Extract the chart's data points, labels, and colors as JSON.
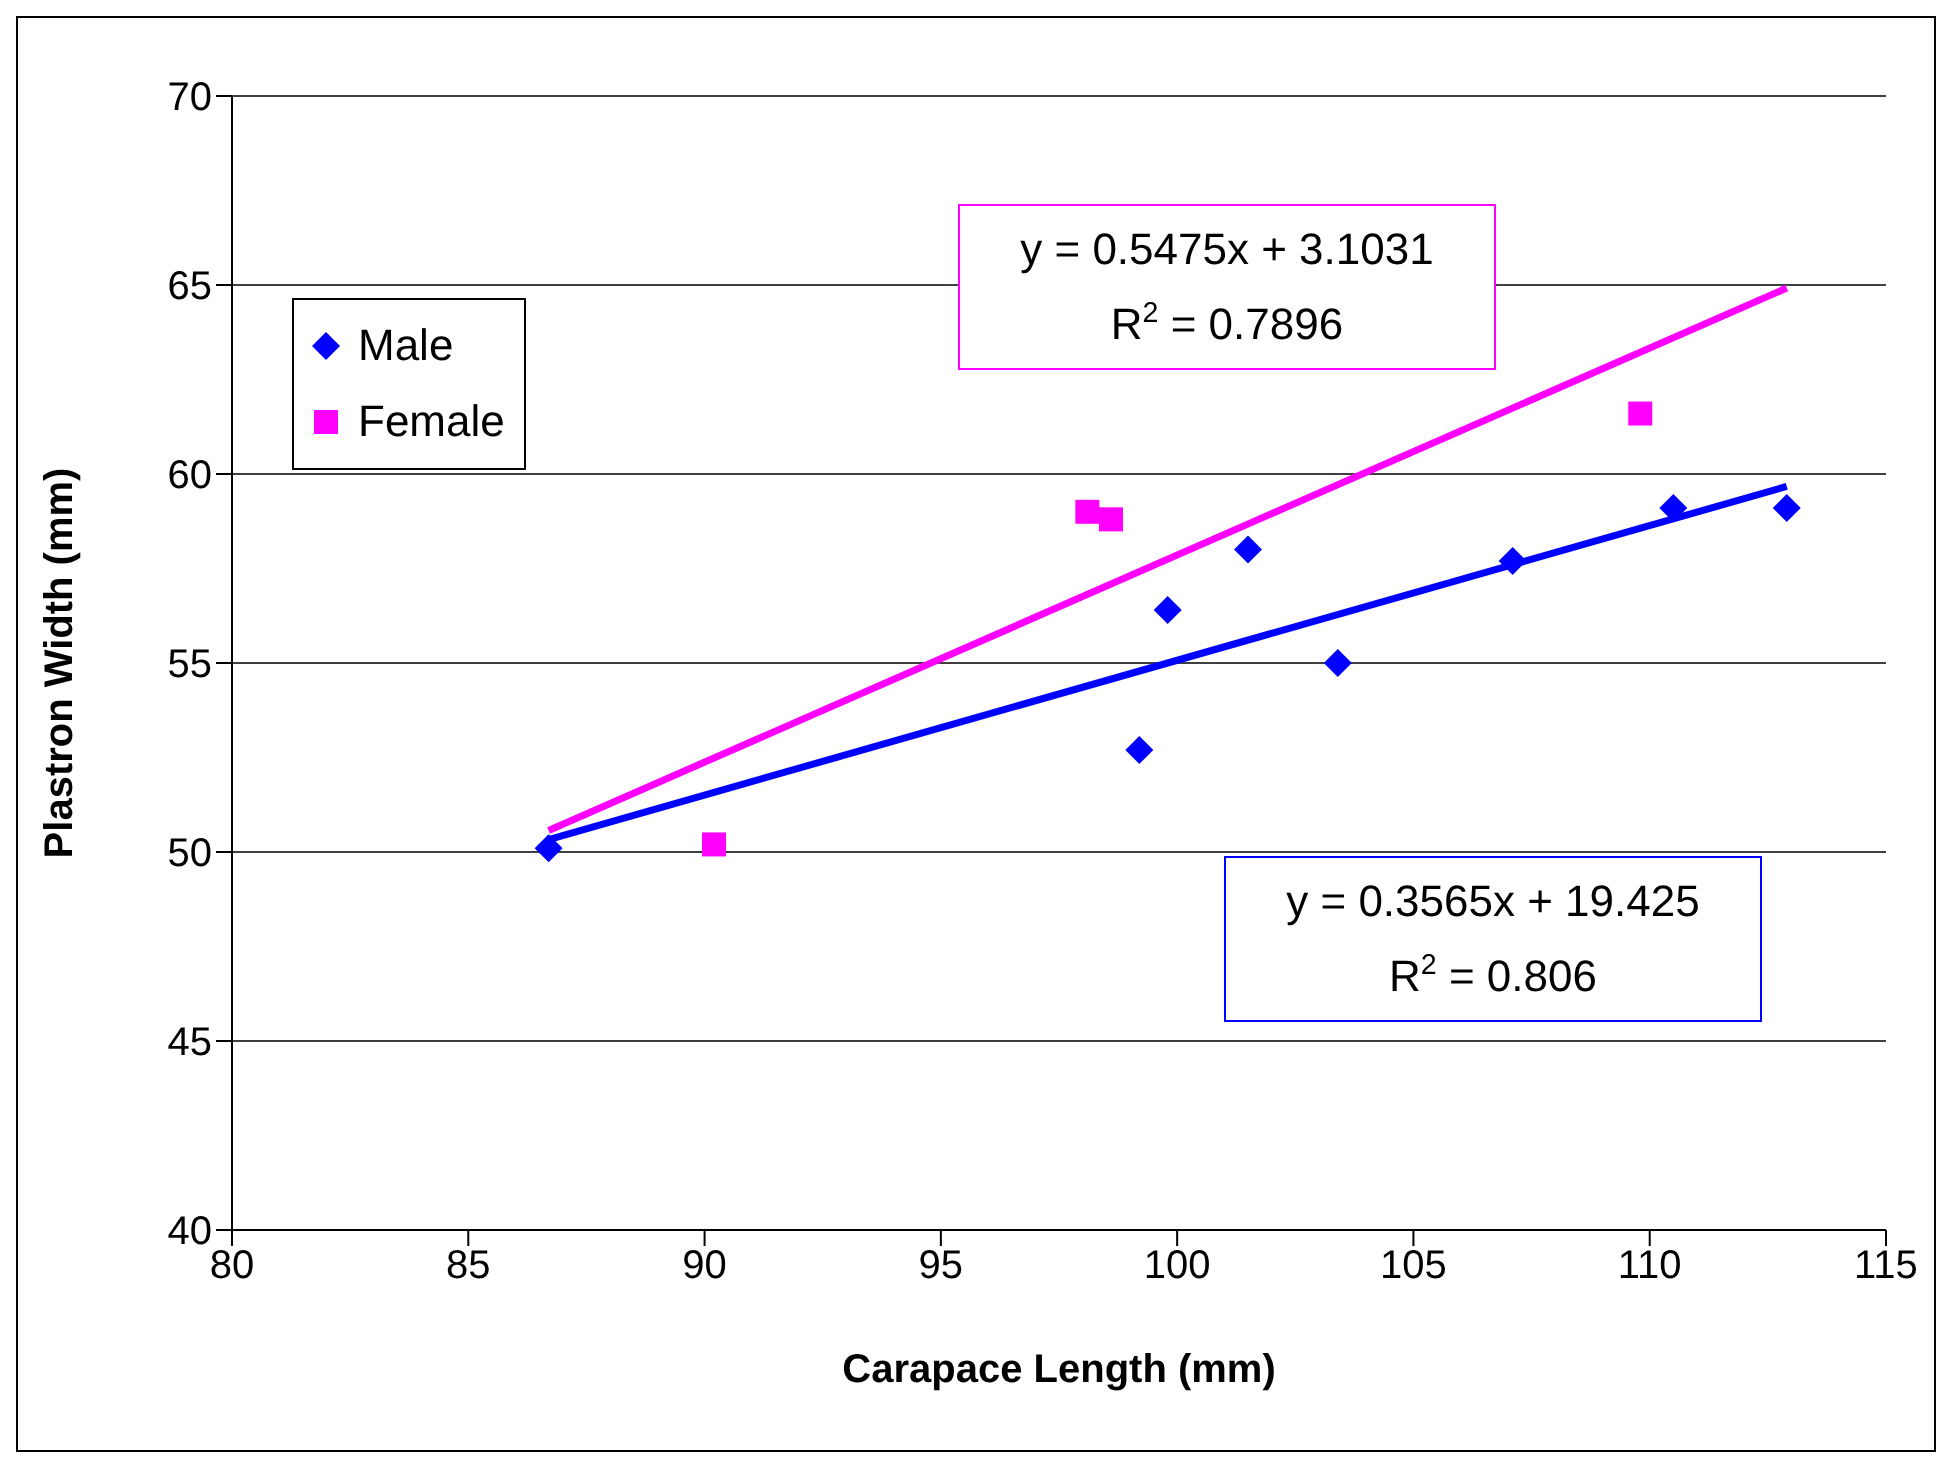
{
  "chart_data": {
    "type": "scatter",
    "xlabel": "Carapace Length (mm)",
    "ylabel": "Plastron Width (mm)",
    "xlim": [
      80,
      115
    ],
    "xticks": [
      80,
      85,
      90,
      95,
      100,
      105,
      110,
      115
    ],
    "ylim": [
      40,
      70
    ],
    "yticks": [
      40,
      45,
      50,
      55,
      60,
      65,
      70
    ],
    "grid": "y",
    "legend": "top left",
    "series": [
      {
        "name": "Male",
        "color": "#0000ff",
        "marker": "diamond",
        "x": [
          86.7,
          99.2,
          99.8,
          101.5,
          103.4,
          107.1,
          110.5,
          112.9
        ],
        "values": [
          50.1,
          52.7,
          56.4,
          58.0,
          55.0,
          57.7,
          59.1,
          59.1
        ]
      },
      {
        "name": "Female",
        "color": "#ff00ff",
        "marker": "square",
        "x": [
          90.2,
          98.1,
          98.6,
          109.8
        ],
        "values": [
          50.2,
          59.0,
          58.8,
          61.6
        ]
      },
      {
        "type": "line",
        "color": "#ff00ff",
        "x": [
          86.7,
          112.9
        ],
        "values": [
          50.57,
          64.92
        ]
      },
      {
        "type": "line",
        "color": "#0000ff",
        "x": [
          86.7,
          112.9
        ],
        "values": [
          50.33,
          59.67
        ]
      }
    ],
    "annotations": [
      "y = 0.5475x + 3.1031\nR$^{2}$ = 0.7896",
      "y = 0.3565x + 19.425\nR$^{2}$ = 0.806"
    ]
  }
}
